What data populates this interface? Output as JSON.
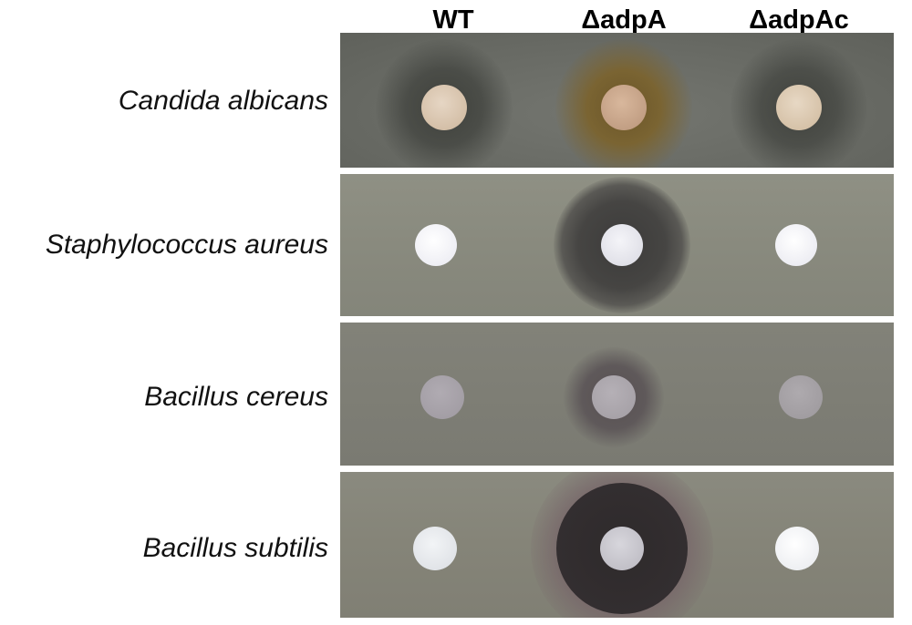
{
  "columns": [
    "WT",
    "ΔadpA",
    "ΔadpAc"
  ],
  "rows": [
    {
      "organism": "Candida albicans"
    },
    {
      "organism": "Staphylococcus aureus"
    },
    {
      "organism": "Bacillus cereus"
    },
    {
      "organism": "Bacillus subtilis"
    }
  ],
  "colors": {
    "plate_candida": "#6a6c66",
    "plate_staph": "#8a8b7e",
    "plate_cereus": "#7f7f76",
    "plate_subtilis": "#858478",
    "disc_candida": "#d9c4ad",
    "disc_white": "#f2f2f6",
    "disc_grey": "#a9a4aa",
    "halo_dark": "#45433f",
    "halo_brown": "#7a6431"
  }
}
